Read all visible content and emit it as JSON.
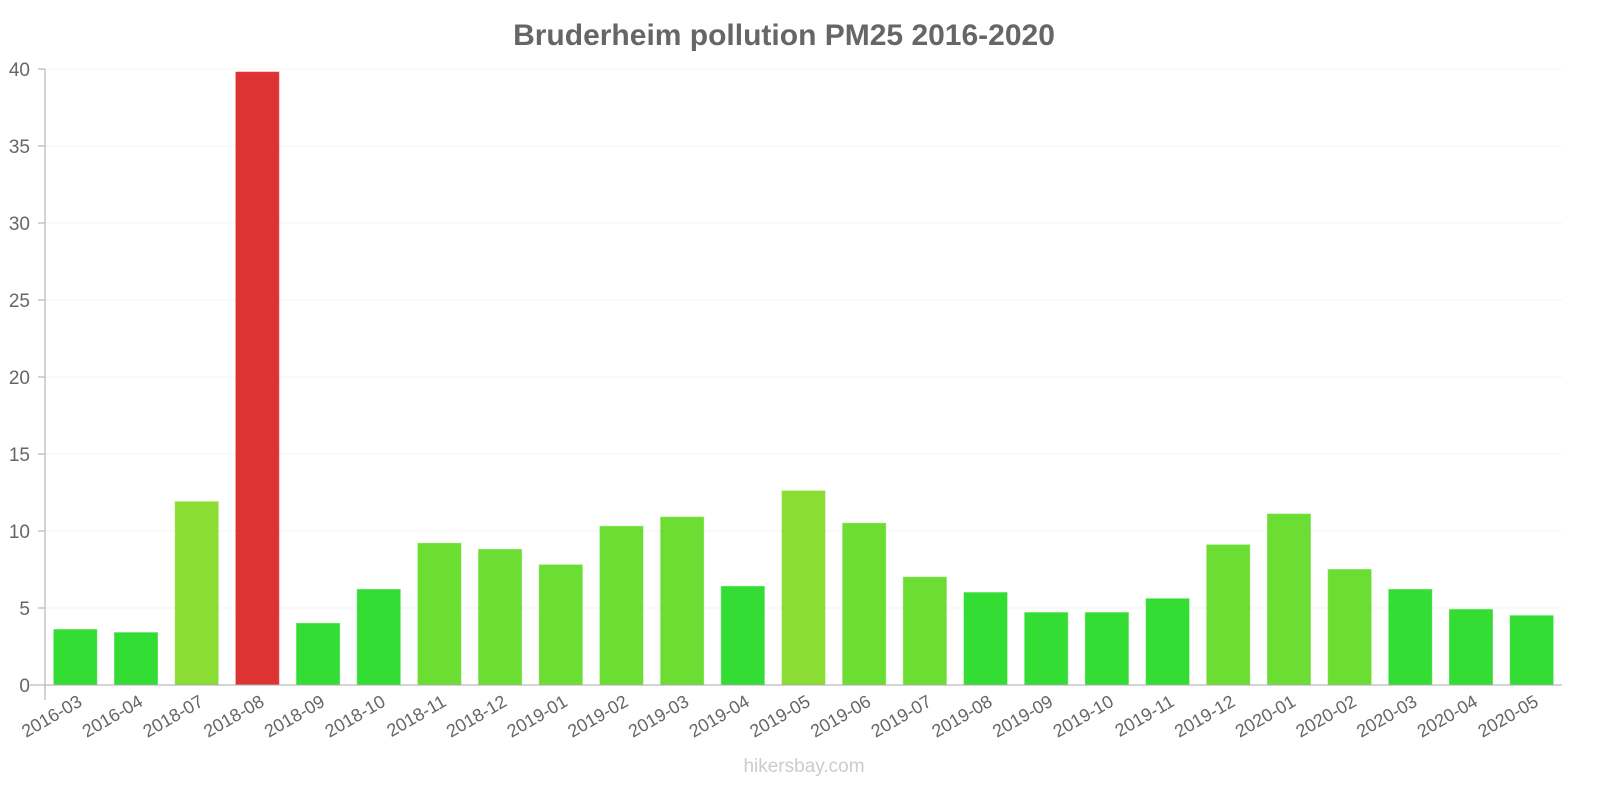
{
  "chart_data": {
    "type": "bar",
    "title": "Bruderheim pollution PM25 2016-2020",
    "xlabel": "",
    "ylabel": "",
    "ylim": [
      0,
      40
    ],
    "yticks": [
      0,
      5,
      10,
      15,
      20,
      25,
      30,
      35,
      40
    ],
    "grid": true,
    "categories": [
      "2016-03",
      "2016-04",
      "2018-07",
      "2018-08",
      "2018-09",
      "2018-10",
      "2018-11",
      "2018-12",
      "2019-01",
      "2019-02",
      "2019-03",
      "2019-04",
      "2019-05",
      "2019-06",
      "2019-07",
      "2019-08",
      "2019-09",
      "2019-10",
      "2019-11",
      "2019-12",
      "2020-01",
      "2020-02",
      "2020-03",
      "2020-04",
      "2020-05"
    ],
    "values": [
      3.6,
      3.4,
      11.9,
      39.8,
      4.0,
      6.2,
      9.2,
      8.8,
      7.8,
      10.3,
      10.9,
      6.4,
      12.6,
      10.5,
      7.0,
      6.0,
      4.7,
      4.7,
      5.6,
      9.1,
      11.1,
      7.5,
      6.2,
      4.9,
      4.5
    ],
    "colors": {
      "good": "#33dd33",
      "moderate": "#6bdd33",
      "elevated": "#8bdd33",
      "high": "#dd3333"
    }
  },
  "footer": "hikersbay.com"
}
